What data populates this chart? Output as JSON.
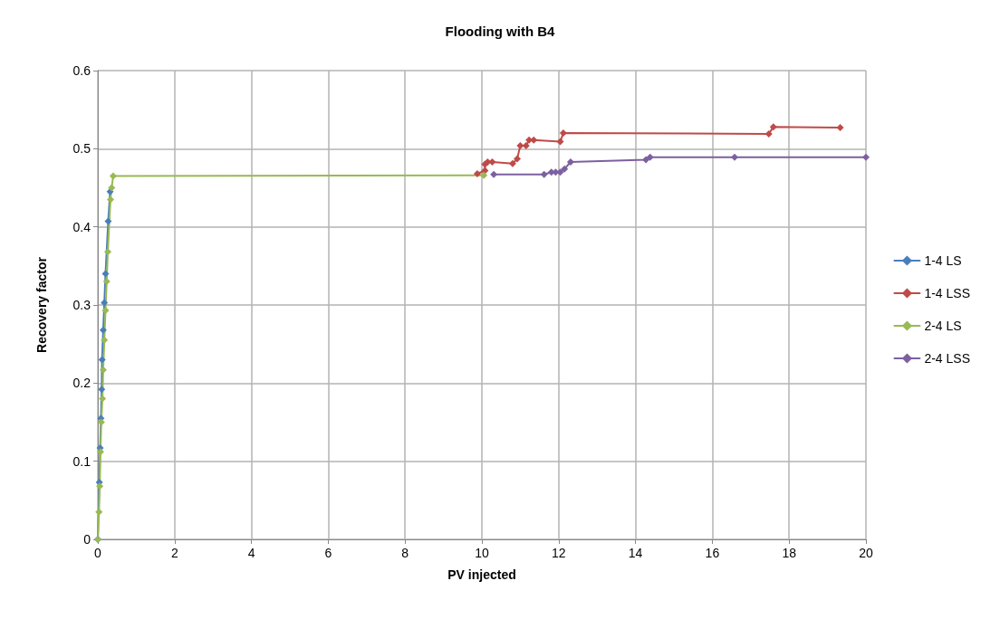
{
  "chart_data": {
    "type": "line",
    "title": "Flooding with B4",
    "xlabel": "PV injected",
    "ylabel": "Recovery factor",
    "xlim": [
      0,
      20
    ],
    "xticks": [
      0,
      2,
      4,
      6,
      8,
      10,
      12,
      14,
      16,
      18,
      20
    ],
    "ylim": [
      0,
      0.6
    ],
    "yticks": [
      0,
      0.1,
      0.2,
      0.3,
      0.4,
      0.5,
      0.6
    ],
    "grid": true,
    "legend": "right",
    "marker": "diamond",
    "line_style": "solid",
    "series": [
      {
        "name": "1-4 LS",
        "color": "#4a7ebb",
        "x": [
          0,
          0.04,
          0.06,
          0.08,
          0.1,
          0.11,
          0.14,
          0.17,
          0.2,
          0.27,
          0.32
        ],
        "values": [
          0,
          0.073,
          0.117,
          0.155,
          0.192,
          0.23,
          0.268,
          0.303,
          0.34,
          0.407,
          0.445
        ]
      },
      {
        "name": "1-4 LSS",
        "color": "#be4b48",
        "x": [
          9.88,
          10.08,
          10.08,
          10.15,
          10.27,
          10.8,
          10.92,
          11.0,
          11.15,
          11.23,
          11.35,
          12.04,
          12.12,
          17.47,
          17.59,
          19.33
        ],
        "values": [
          0.468,
          0.472,
          0.48,
          0.483,
          0.483,
          0.481,
          0.487,
          0.504,
          0.504,
          0.511,
          0.511,
          0.509,
          0.52,
          0.519,
          0.528,
          0.527
        ]
      },
      {
        "name": "2-4 LS",
        "color": "#98b954",
        "x": [
          0,
          0.03,
          0.05,
          0.07,
          0.09,
          0.12,
          0.14,
          0.17,
          0.2,
          0.23,
          0.26,
          0.33,
          0.36,
          0.4,
          10.05
        ],
        "values": [
          0,
          0.035,
          0.068,
          0.112,
          0.15,
          0.18,
          0.217,
          0.255,
          0.293,
          0.33,
          0.368,
          0.435,
          0.45,
          0.465,
          0.466
        ]
      },
      {
        "name": "2-4 LSS",
        "color": "#7d60a0",
        "x": [
          10.31,
          11.62,
          11.81,
          11.92,
          12.04,
          12.15,
          12.31,
          14.27,
          14.38,
          16.58,
          20
        ],
        "values": [
          0.467,
          0.467,
          0.47,
          0.47,
          0.47,
          0.474,
          0.483,
          0.486,
          0.489,
          0.489,
          0.489
        ]
      }
    ]
  }
}
